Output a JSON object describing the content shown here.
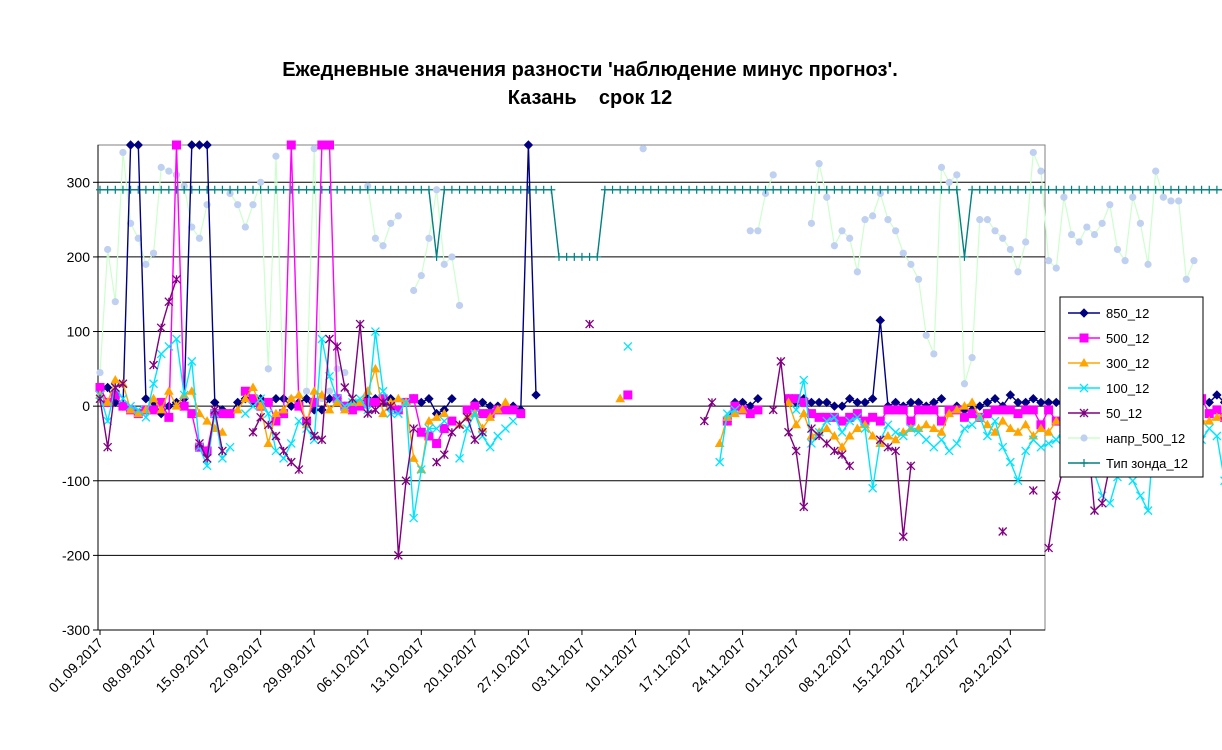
{
  "chart_data": {
    "type": "line",
    "title": "Ежедневные значения разности 'наблюдение минус прогноз'.",
    "subtitle": "Казань    срок 12",
    "ylim": [
      -300,
      350
    ],
    "yticks": [
      -300,
      -200,
      -100,
      0,
      100,
      200,
      300
    ],
    "grid": true,
    "legend_position": "right",
    "x_start": "01.09.2017",
    "x_end": "31.12.2017",
    "x_ticks": [
      "01.09.2017",
      "08.09.2017",
      "15.09.2017",
      "22.09.2017",
      "29.09.2017",
      "06.10.2017",
      "13.10.2017",
      "20.10.2017",
      "27.10.2017",
      "03.11.2017",
      "10.11.2017",
      "17.11.2017",
      "24.11.2017",
      "01.12.2017",
      "08.12.2017",
      "15.12.2017",
      "22.12.2017",
      "29.12.2017"
    ],
    "series": [
      {
        "name": "850_12",
        "color": "#000080",
        "marker": "diamond",
        "values": [
          20,
          25,
          5,
          0,
          350,
          350,
          10,
          5,
          -10,
          0,
          5,
          10,
          350,
          350,
          350,
          5,
          -5,
          -10,
          5,
          10,
          5,
          10,
          5,
          10,
          10,
          0,
          5,
          10,
          -5,
          -5,
          10,
          10,
          0,
          5,
          5,
          10,
          10,
          5,
          10,
          -5,
          5,
          10,
          5,
          10,
          -10,
          -5,
          10,
          null,
          null,
          5,
          5,
          0,
          0,
          0,
          0,
          -5,
          350,
          15,
          null,
          null,
          null,
          null,
          null,
          null,
          null,
          null,
          null,
          null,
          null,
          null,
          null,
          null,
          null,
          null,
          null,
          null,
          null,
          null,
          null,
          null,
          null,
          null,
          -20,
          5,
          5,
          0,
          10,
          null,
          null,
          null,
          10,
          5,
          10,
          5,
          5,
          5,
          0,
          0,
          10,
          5,
          5,
          10,
          115,
          0,
          5,
          0,
          5,
          5,
          0,
          5,
          10,
          null,
          0,
          -5,
          -5,
          0,
          5,
          10,
          0,
          15,
          5,
          5,
          10,
          5,
          5,
          5,
          0,
          0,
          10,
          0,
          0,
          5,
          0,
          0,
          5,
          5,
          0,
          5,
          5,
          5,
          10,
          0,
          10,
          35,
          5,
          5,
          15,
          5,
          5,
          0,
          5,
          5,
          0,
          0,
          0,
          5,
          0,
          5,
          10
        ]
      },
      {
        "name": "500_12",
        "color": "#FF00FF",
        "marker": "square",
        "values": [
          25,
          5,
          15,
          0,
          -5,
          -10,
          -5,
          -5,
          5,
          -15,
          350,
          0,
          -10,
          -55,
          -60,
          -10,
          -10,
          -10,
          null,
          20,
          10,
          0,
          5,
          -20,
          -10,
          350,
          0,
          -20,
          5,
          350,
          350,
          10,
          0,
          -5,
          0,
          5,
          5,
          10,
          0,
          -5,
          5,
          10,
          -35,
          -40,
          -50,
          -30,
          -20,
          null,
          -5,
          0,
          -10,
          -10,
          -5,
          -5,
          -5,
          -10,
          null,
          null,
          null,
          null,
          null,
          null,
          null,
          null,
          null,
          null,
          null,
          null,
          null,
          15,
          null,
          null,
          null,
          null,
          null,
          null,
          null,
          null,
          null,
          null,
          null,
          null,
          -20,
          0,
          -5,
          -10,
          -5,
          null,
          null,
          null,
          10,
          10,
          5,
          -10,
          -15,
          -15,
          -15,
          -20,
          -15,
          -10,
          -20,
          -15,
          -20,
          -5,
          -5,
          -5,
          -20,
          -5,
          -5,
          -5,
          -20,
          -5,
          -5,
          -15,
          -10,
          -15,
          -10,
          -5,
          -5,
          -5,
          -10,
          -5,
          -5,
          -25,
          -5,
          -20,
          -30,
          -25,
          -15,
          -20,
          -5,
          -15,
          -10,
          -20,
          -15,
          -5,
          -15,
          -20,
          -15,
          -25,
          -10,
          -5,
          -15,
          10,
          10,
          -10,
          -5,
          -15,
          -10,
          -15,
          -10,
          -20,
          -20,
          -15,
          -20,
          -15,
          -25,
          -15,
          -25,
          -10,
          0
        ]
      },
      {
        "name": "300_12",
        "color": "#FFA500",
        "marker": "triangle",
        "values": [
          15,
          5,
          35,
          30,
          -5,
          -10,
          -5,
          10,
          -5,
          20,
          0,
          15,
          20,
          -10,
          -20,
          -30,
          -35,
          null,
          -5,
          10,
          25,
          0,
          -50,
          -10,
          -5,
          10,
          15,
          -25,
          20,
          15,
          -5,
          5,
          -5,
          5,
          5,
          20,
          50,
          -10,
          5,
          10,
          5,
          -70,
          -85,
          -20,
          -15,
          -10,
          null,
          -25,
          -15,
          -10,
          -30,
          -15,
          -5,
          5,
          null,
          null,
          null,
          null,
          null,
          null,
          null,
          null,
          null,
          null,
          null,
          null,
          null,
          null,
          10,
          null,
          null,
          null,
          null,
          null,
          null,
          null,
          null,
          null,
          null,
          null,
          null,
          -50,
          -15,
          -10,
          -5,
          null,
          null,
          null,
          null,
          null,
          5,
          -25,
          -10,
          -40,
          -35,
          -30,
          -40,
          -55,
          -40,
          -30,
          -25,
          -40,
          -50,
          -40,
          -45,
          -35,
          -30,
          -30,
          -25,
          -30,
          -35,
          -10,
          -5,
          0,
          5,
          -15,
          -25,
          -35,
          -20,
          -30,
          -35,
          -25,
          -40,
          -30,
          -35,
          -20,
          -30,
          -45,
          -40,
          -50,
          -35,
          -45,
          -20,
          -65,
          -55,
          -40,
          -55,
          -30,
          -50,
          0,
          -5,
          -25,
          -35,
          -30,
          -20,
          -20,
          -15,
          -10,
          -30,
          -55,
          -30,
          -20,
          -35,
          -40,
          -35
        ]
      },
      {
        "name": "100_12",
        "color": "#00E5FF",
        "marker": "x",
        "values": [
          15,
          -20,
          25,
          10,
          0,
          -5,
          -15,
          30,
          70,
          80,
          90,
          15,
          60,
          -55,
          -80,
          -10,
          -70,
          -55,
          null,
          -10,
          0,
          10,
          -10,
          -60,
          -70,
          -50,
          -20,
          -30,
          -45,
          90,
          40,
          10,
          0,
          5,
          10,
          -5,
          100,
          20,
          -10,
          -10,
          5,
          -150,
          -85,
          -30,
          -30,
          -20,
          null,
          -70,
          -30,
          -10,
          -40,
          -55,
          -40,
          -30,
          -20,
          null,
          null,
          null,
          null,
          null,
          null,
          null,
          null,
          null,
          null,
          null,
          null,
          null,
          null,
          80,
          null,
          null,
          null,
          null,
          null,
          null,
          null,
          null,
          null,
          null,
          null,
          -75,
          -10,
          -5,
          null,
          null,
          null,
          null,
          null,
          null,
          null,
          -5,
          35,
          -50,
          -35,
          -20,
          -15,
          -35,
          -20,
          -15,
          -30,
          -110,
          -45,
          -25,
          -35,
          -40,
          -30,
          -35,
          -45,
          -55,
          -45,
          -60,
          -50,
          -30,
          -25,
          -15,
          -40,
          -20,
          -55,
          -75,
          -100,
          -60,
          -45,
          -55,
          -50,
          -45,
          -30,
          -40,
          -55,
          -35,
          -90,
          -120,
          -130,
          -95,
          -90,
          -100,
          -120,
          -140,
          -10,
          -30,
          -35,
          -40,
          -50,
          -20,
          -45,
          -30,
          -40,
          -100,
          -100,
          -60,
          -50,
          -45,
          -35
        ]
      },
      {
        "name": "50_12",
        "color": "#800080",
        "marker": "star",
        "values": [
          10,
          -55,
          25,
          30,
          null,
          null,
          null,
          55,
          105,
          140,
          170,
          null,
          null,
          -50,
          -70,
          -5,
          -60,
          null,
          null,
          null,
          -35,
          -15,
          -25,
          -40,
          -60,
          -75,
          -85,
          -20,
          -40,
          -45,
          90,
          80,
          25,
          10,
          110,
          -10,
          -5,
          5,
          0,
          -200,
          -100,
          -30,
          null,
          null,
          -75,
          -65,
          -35,
          -25,
          -15,
          -45,
          -35,
          null,
          null,
          null,
          null,
          null,
          null,
          null,
          null,
          null,
          null,
          null,
          null,
          null,
          110,
          null,
          null,
          null,
          null,
          null,
          null,
          null,
          null,
          null,
          null,
          null,
          null,
          null,
          null,
          -20,
          5,
          null,
          null,
          null,
          null,
          null,
          null,
          null,
          -5,
          60,
          -35,
          -60,
          -135,
          -30,
          -40,
          -50,
          -60,
          -65,
          -80,
          null,
          null,
          null,
          -45,
          -55,
          -60,
          -175,
          -80,
          null,
          null,
          null,
          null,
          null,
          null,
          null,
          null,
          null,
          null,
          null,
          -168,
          null,
          null,
          null,
          -113,
          null,
          -190,
          -120,
          -80,
          -35,
          -30,
          -30,
          -140,
          -130,
          -80,
          -70,
          -70
        ]
      },
      {
        "name": "напр_500_12",
        "color": "#CCFFCC",
        "marker": "circle",
        "marker_color": "#C0D0F0",
        "values": [
          45,
          210,
          140,
          340,
          245,
          225,
          190,
          205,
          320,
          315,
          310,
          295,
          240,
          225,
          270,
          null,
          null,
          285,
          270,
          240,
          270,
          300,
          50,
          335,
          10,
          10,
          5,
          20,
          345,
          10,
          20,
          50,
          45,
          null,
          null,
          295,
          225,
          215,
          245,
          255,
          null,
          155,
          175,
          225,
          290,
          190,
          200,
          135,
          null,
          null,
          null,
          null,
          null,
          null,
          null,
          null,
          null,
          null,
          null,
          null,
          null,
          null,
          null,
          null,
          null,
          null,
          null,
          null,
          null,
          null,
          null,
          345,
          null,
          null,
          null,
          null,
          null,
          null,
          null,
          null,
          null,
          null,
          null,
          null,
          null,
          235,
          235,
          285,
          310,
          null,
          null,
          null,
          null,
          245,
          325,
          280,
          215,
          235,
          225,
          180,
          250,
          255,
          285,
          250,
          235,
          205,
          190,
          170,
          95,
          70,
          320,
          300,
          310,
          30,
          65,
          250,
          250,
          235,
          225,
          210,
          180,
          220,
          340,
          315,
          195,
          185,
          280,
          230,
          220,
          240,
          230,
          245,
          270,
          210,
          195,
          280,
          245,
          190,
          315,
          280,
          275,
          275,
          170,
          195
        ]
      },
      {
        "name": "Тип зонда_12",
        "color": "#008080",
        "marker": "plus",
        "values": [
          290,
          290,
          290,
          290,
          290,
          290,
          290,
          290,
          290,
          290,
          290,
          290,
          290,
          290,
          290,
          290,
          290,
          290,
          290,
          290,
          290,
          290,
          290,
          290,
          290,
          290,
          290,
          290,
          290,
          290,
          290,
          290,
          290,
          290,
          290,
          290,
          290,
          290,
          290,
          290,
          290,
          290,
          290,
          290,
          200,
          290,
          290,
          290,
          290,
          290,
          290,
          290,
          290,
          290,
          290,
          290,
          290,
          290,
          290,
          290,
          200,
          200,
          200,
          200,
          200,
          200,
          290,
          290,
          290,
          290,
          290,
          290,
          290,
          290,
          290,
          290,
          290,
          290,
          290,
          290,
          290,
          290,
          290,
          290,
          290,
          290,
          290,
          290,
          290,
          290,
          290,
          290,
          290,
          290,
          290,
          290,
          290,
          290,
          290,
          290,
          290,
          290,
          290,
          290,
          290,
          290,
          290,
          290,
          290,
          290,
          290,
          290,
          290,
          200,
          290,
          290,
          290,
          290,
          290,
          290,
          290,
          290,
          290,
          290,
          290,
          290,
          290,
          290,
          290,
          290,
          290,
          290,
          290,
          290,
          290,
          290,
          290,
          290,
          290,
          290,
          290,
          290,
          290,
          290,
          290,
          290,
          290,
          290,
          290,
          290,
          290,
          290,
          290,
          290,
          290,
          290,
          290,
          290,
          290,
          290,
          290,
          290,
          290
        ]
      }
    ]
  }
}
